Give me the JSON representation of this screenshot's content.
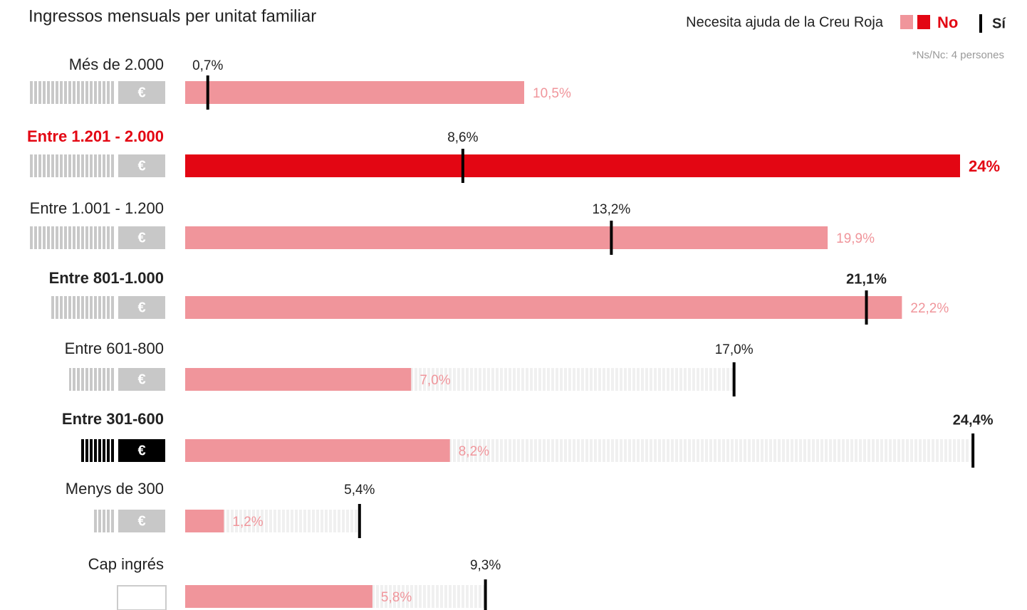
{
  "chart_data": {
    "type": "bar",
    "title": "Ingressos mensuals per unitat familiar",
    "legend_title": "Necesita ajuda de la Creu Roja",
    "note": "*Ns/Nc: 4 persones",
    "currency_symbol": "€",
    "categories": [
      "Més de 2.000",
      "Entre 1.201 - 2.000",
      "Entre 1.001 - 1.200",
      "Entre 801-1.000",
      "Entre 601-800",
      "Entre 301-600",
      "Menys de 300",
      "Cap ingrés"
    ],
    "label_styles": [
      "normal",
      "red",
      "normal",
      "bold",
      "normal",
      "bold",
      "normal",
      "normal"
    ],
    "xlim": [
      0,
      24
    ],
    "series": [
      {
        "name": "No",
        "color": "#f0959b",
        "highlight_color": "#e30613",
        "values": [
          10.5,
          24,
          19.9,
          22.2,
          7.0,
          8.2,
          1.2,
          5.8
        ],
        "value_labels": [
          "10,5%",
          "24%",
          "19,9%",
          "22,2%",
          "7,0%",
          "8,2%",
          "1,2%",
          "5,8%"
        ]
      },
      {
        "name": "Sí",
        "color": "#000000",
        "values": [
          0.7,
          8.6,
          13.2,
          21.1,
          17.0,
          24.4,
          5.4,
          9.3
        ],
        "value_labels": [
          "0,7%",
          "8,6%",
          "13,2%",
          "21,1%",
          "17,0%",
          "24,4%",
          "5,4%",
          "9,3%"
        ]
      }
    ]
  }
}
